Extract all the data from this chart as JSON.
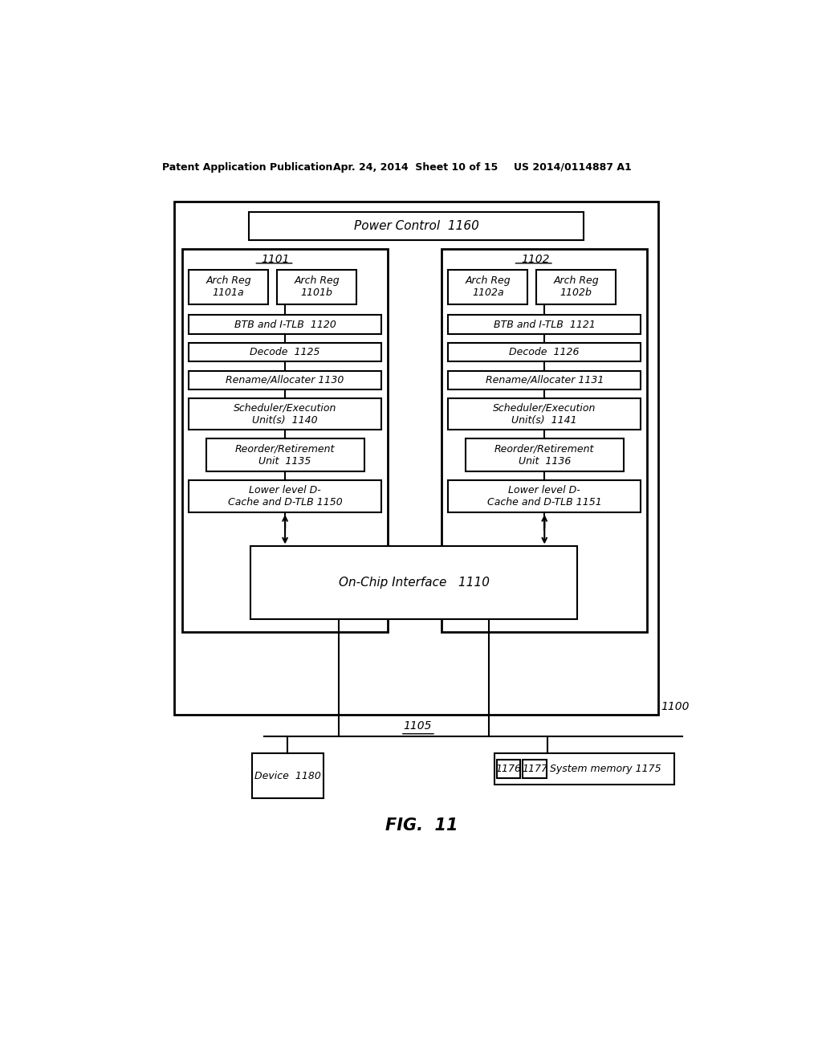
{
  "bg_color": "#ffffff",
  "header_line1": "Patent Application Publication",
  "header_line2": "Apr. 24, 2014  Sheet 10 of 15",
  "header_line3": "US 2014/0114887 A1",
  "fig_label": "FIG.  11",
  "title_text": "Power Control  1160",
  "outer_box_label": "1100",
  "bus_label": "1105",
  "core1_label": "1101",
  "core2_label": "1102",
  "arch_reg_1a": "Arch Reg\n1101a",
  "arch_reg_1b": "Arch Reg\n1101b",
  "arch_reg_2a": "Arch Reg\n1102a",
  "arch_reg_2b": "Arch Reg\n1102b",
  "btb_1": "BTB and I-TLB  1120",
  "btb_2": "BTB and I-TLB  1121",
  "decode_1": "Decode  1125",
  "decode_2": "Decode  1126",
  "rename_1": "Rename/Allocater 1130",
  "rename_2": "Rename/Allocater 1131",
  "sched_1": "Scheduler/Execution\nUnit(s)  1140",
  "sched_2": "Scheduler/Execution\nUnit(s)  1141",
  "reorder_1": "Reorder/Retirement\nUnit  1135",
  "reorder_2": "Reorder/Retirement\nUnit  1136",
  "cache_1": "Lower level D-\nCache and D-TLB 1150",
  "cache_2": "Lower level D-\nCache and D-TLB 1151",
  "onchip": "On-Chip Interface   1110",
  "device": "Device  1180",
  "sys_mem": "System memory 1175",
  "mem_1176": "1176",
  "mem_1177": "1177"
}
